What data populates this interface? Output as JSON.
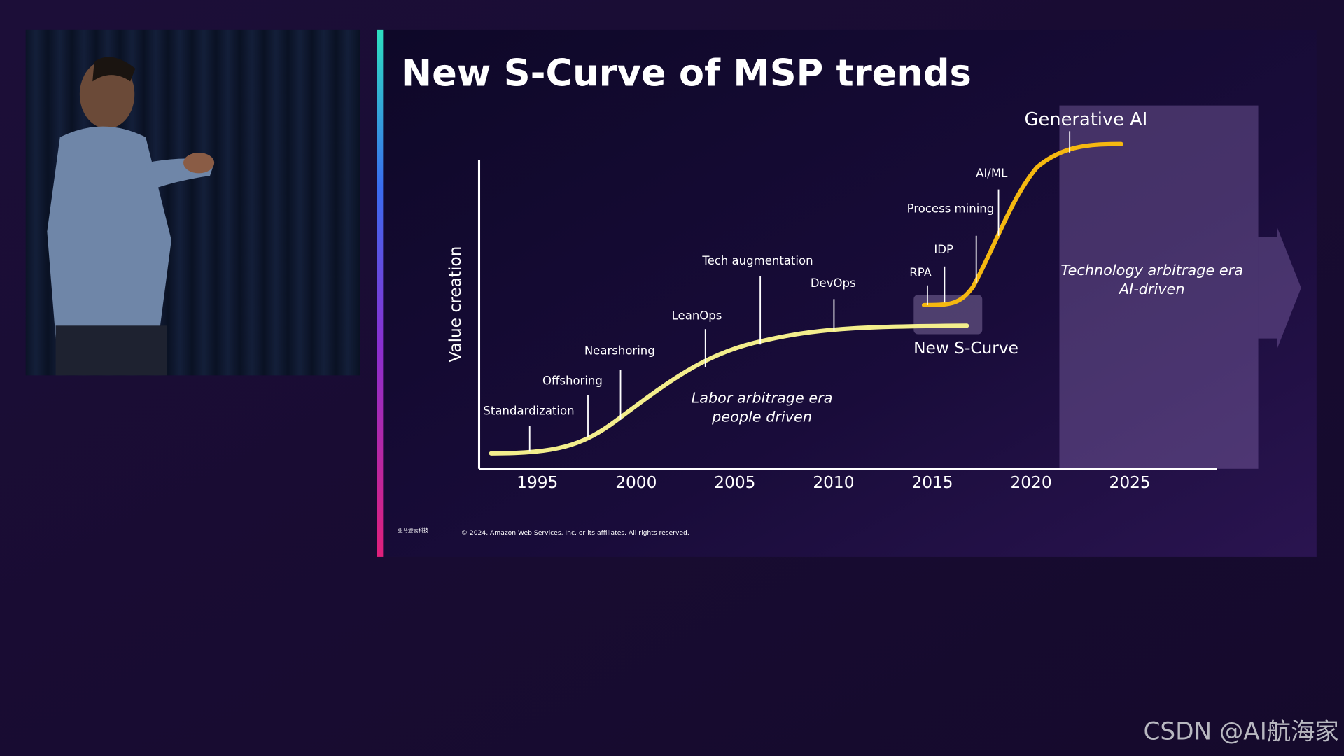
{
  "slide": {
    "title": "New S-Curve of MSP trends",
    "y_axis_label": "Value creation",
    "x_ticks": [
      1995,
      2000,
      2005,
      2010,
      2015,
      2020,
      2025
    ],
    "milestones": [
      "Standardization",
      "Offshoring",
      "Nearshoring",
      "LeanOps",
      "Tech augmentation",
      "DevOps",
      "RPA",
      "IDP",
      "Process mining",
      "AI/ML"
    ],
    "labor_era": [
      "Labor arbitrage era",
      "people driven"
    ],
    "tech_era": [
      "Technology arbitrage era",
      "AI-driven"
    ],
    "new_curve_label": "New S-Curve",
    "generative_label": "Generative AI",
    "logo": "亚马逊云科技",
    "copyright": "© 2024, Amazon Web Services, Inc. or its affiliates. All rights reserved."
  },
  "watermark": "CSDN @AI航海家"
}
